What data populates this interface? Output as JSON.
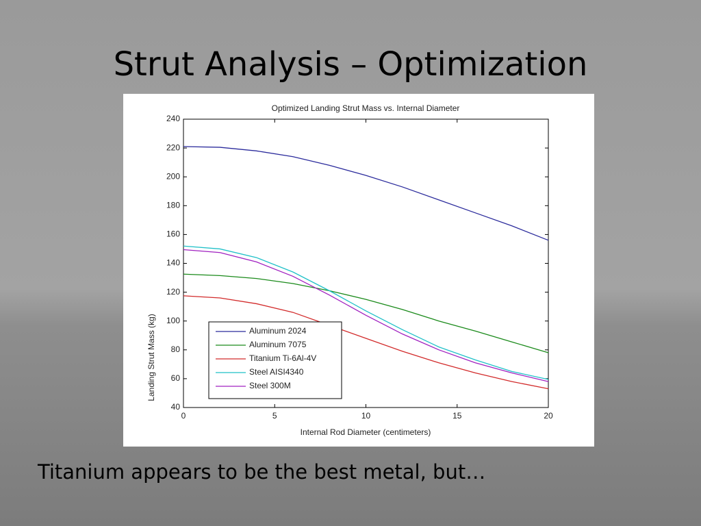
{
  "slide": {
    "title": "Strut Analysis – Optimization",
    "caption": "Titanium appears to be the best metal, but…"
  },
  "chart_data": {
    "type": "line",
    "title": "Optimized Landing Strut Mass vs. Internal Diameter",
    "x_label": "Internal Rod Diameter (centimeters)",
    "y_label": "Landing Strut Mass (kg)",
    "x": [
      0,
      2,
      4,
      6,
      8,
      10,
      12,
      14,
      16,
      18,
      20
    ],
    "series": [
      {
        "name": "Aluminum 2024",
        "color": "#2b2b9c",
        "values": [
          221,
          220.5,
          218,
          214,
          208,
          201,
          193,
          184,
          175,
          166,
          156
        ]
      },
      {
        "name": "Aluminum 7075",
        "color": "#1a8a1a",
        "values": [
          132.5,
          131.5,
          129.5,
          126,
          121,
          115,
          108,
          100,
          93,
          85.5,
          78
        ]
      },
      {
        "name": "Titanium Ti-6Al-4V",
        "color": "#d22a2a",
        "values": [
          117.5,
          116,
          112,
          106,
          97,
          88,
          79,
          71,
          64,
          58,
          53
        ]
      },
      {
        "name": "Steel AISI4340",
        "color": "#1fc0c8",
        "values": [
          152,
          150,
          144,
          134,
          121,
          107,
          94,
          82,
          73,
          65,
          59.5
        ]
      },
      {
        "name": "Steel 300M",
        "color": "#a020c0",
        "values": [
          149.5,
          147.5,
          141,
          131,
          118,
          104,
          91,
          80,
          71,
          64,
          58
        ]
      }
    ],
    "xlim": [
      0,
      20
    ],
    "xticks": [
      0,
      5,
      10,
      15,
      20
    ],
    "ylim": [
      40,
      240
    ],
    "yticks": [
      40,
      60,
      80,
      100,
      120,
      140,
      160,
      180,
      200,
      220,
      240
    ],
    "grid": false,
    "legend": "lower left"
  }
}
